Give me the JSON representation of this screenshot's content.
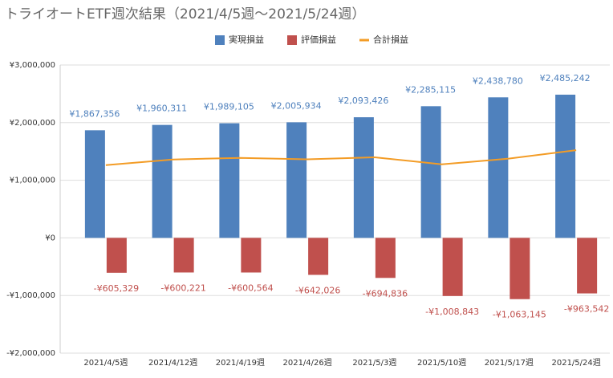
{
  "chart_data": {
    "type": "bar",
    "title": "トライオートETF週次結果（2021/4/5週～2021/5/24週）",
    "categories": [
      "2021/4/5週",
      "2021/4/12週",
      "2021/4/19週",
      "2021/4/26週",
      "2021/5/3週",
      "2021/5/10週",
      "2021/5/17週",
      "2021/5/24週"
    ],
    "series": [
      {
        "name": "実現損益",
        "color": "#4f81bd",
        "values": [
          1867356,
          1960311,
          1989105,
          2005934,
          2093426,
          2285115,
          2438780,
          2485242
        ],
        "value_labels": [
          "¥1,867,356",
          "¥1,960,311",
          "¥1,989,105",
          "¥2,005,934",
          "¥2,093,426",
          "¥2,285,115",
          "¥2,438,780",
          "¥2,485,242"
        ]
      },
      {
        "name": "評価損益",
        "color": "#c0504d",
        "values": [
          -605329,
          -600221,
          -600564,
          -642026,
          -694836,
          -1008843,
          -1063145,
          -963542
        ],
        "value_labels": [
          "-¥605,329",
          "-¥600,221",
          "-¥600,564",
          "-¥642,026",
          "-¥694,836",
          "-¥1,008,843",
          "-¥1,063,145",
          "-¥963,542"
        ]
      },
      {
        "name": "合計損益",
        "color": "#f39c26",
        "type": "line",
        "values": [
          1262027,
          1360090,
          1388541,
          1363908,
          1398590,
          1276272,
          1375635,
          1521700
        ]
      }
    ],
    "ylim": [
      -2000000,
      3000000
    ],
    "yticks": [
      {
        "value": -2000000,
        "label": "-¥2,000,000"
      },
      {
        "value": -1000000,
        "label": "-¥1,000,000"
      },
      {
        "value": 0,
        "label": "¥0"
      },
      {
        "value": 1000000,
        "label": "¥1,000,000"
      },
      {
        "value": 2000000,
        "label": "¥2,000,000"
      },
      {
        "value": 3000000,
        "label": "¥3,000,000"
      }
    ],
    "grid": true,
    "legend": "top"
  }
}
